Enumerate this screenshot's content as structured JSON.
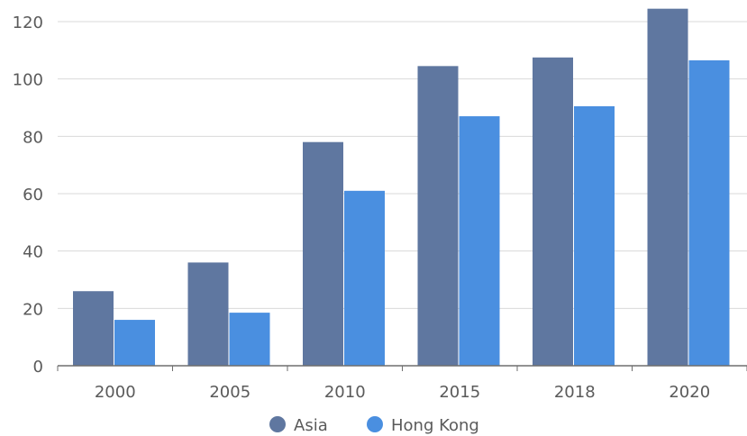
{
  "chart_data": {
    "type": "bar",
    "title": "",
    "xlabel": "",
    "ylabel": "",
    "categories": [
      "2000",
      "2005",
      "2010",
      "2015",
      "2018",
      "2020"
    ],
    "series": [
      {
        "name": "Asia",
        "color": "#5f77a0",
        "values": [
          26,
          36,
          78,
          104.5,
          107.5,
          124.5
        ]
      },
      {
        "name": "Hong Kong",
        "color": "#4a8fe0",
        "values": [
          16,
          18.5,
          61,
          87,
          90.5,
          106.5
        ]
      }
    ],
    "ylim": [
      0,
      120
    ],
    "yticks": [
      "0",
      "20",
      "40",
      "60",
      "80",
      "100",
      "120"
    ],
    "grid": true,
    "legend": "bottom-center"
  }
}
